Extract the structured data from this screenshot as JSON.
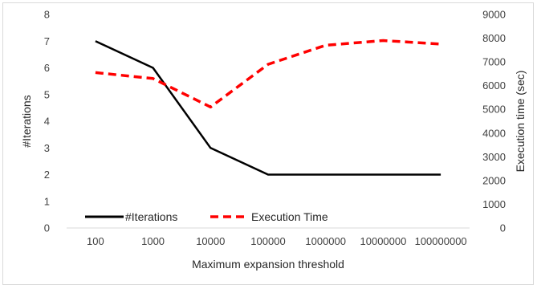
{
  "chart_data": {
    "type": "line",
    "title": "",
    "xlabel": "Maximum expansion threshold",
    "ylabel": "#Iterations",
    "y2label": "Execution time (sec)",
    "categories": [
      "100",
      "1000",
      "10000",
      "100000",
      "1000000",
      "10000000",
      "100000000"
    ],
    "ylim": [
      0,
      8
    ],
    "y2lim": [
      0,
      9000
    ],
    "yticks": [
      "0",
      "1",
      "2",
      "3",
      "4",
      "5",
      "6",
      "7",
      "8"
    ],
    "y2ticks": [
      "0",
      "1000",
      "2000",
      "3000",
      "4000",
      "5000",
      "6000",
      "7000",
      "8000",
      "9000"
    ],
    "grid": false,
    "legend_position": "bottom-left",
    "series": [
      {
        "name": "#Iterations",
        "axis": "left",
        "style": "solid",
        "color": "#000000",
        "values": [
          7,
          6,
          3,
          2,
          2,
          2,
          2
        ]
      },
      {
        "name": "Execution Time",
        "axis": "right",
        "style": "dashed",
        "color": "#ff0000",
        "values": [
          6550,
          6300,
          5100,
          6900,
          7700,
          7900,
          7750
        ]
      }
    ]
  }
}
